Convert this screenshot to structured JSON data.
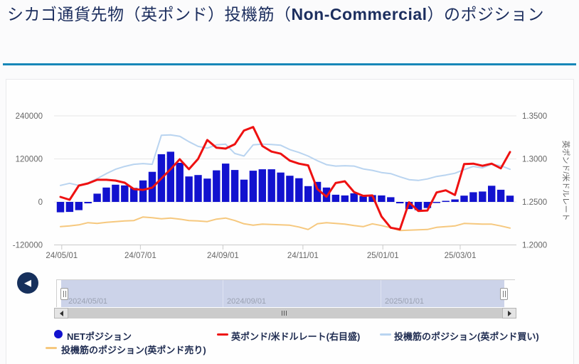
{
  "title": {
    "pre": "シカゴ通貨先物（英ポンド）投機筋（",
    "highlight": "Non-Commercial",
    "post": "）のポジション"
  },
  "back_button": {
    "icon": "◀"
  },
  "navigator": {
    "labels": [
      "2024/05/01",
      "2024/09/01",
      "2025/01/01"
    ]
  },
  "colors": {
    "bar": "#1212cf",
    "rate_line": "#ee1111",
    "long_line": "#b9d4f0",
    "short_line": "#f6c87e",
    "grid": "#e7e7e7",
    "axis_label": "#666666",
    "accent_rule": "#1787b8",
    "navy": "#16305c"
  },
  "chart_data": {
    "type": "combo",
    "title": "シカゴ通貨先物（英ポンド）投機筋（Non-Commercial）のポジション",
    "ylabel_right": "英ポンド/米ドルレート",
    "y_left_ticks": [
      "240000",
      "120000",
      "0",
      "-120000"
    ],
    "y_right_ticks": [
      "1.3500",
      "1.3000",
      "1.2500",
      "1.2000"
    ],
    "ylim_left": [
      -180000,
      300000
    ],
    "ylim_right": [
      1.175,
      1.375
    ],
    "x_ticks": [
      "24/05/01",
      "24/07/01",
      "24/09/01",
      "24/11/01",
      "25/01/01",
      "25/03/01"
    ],
    "grid": true,
    "legend_position": "bottom",
    "categories": [
      "2024/04/30",
      "2024/05/07",
      "2024/05/14",
      "2024/05/21",
      "2024/05/28",
      "2024/06/04",
      "2024/06/11",
      "2024/06/18",
      "2024/06/25",
      "2024/07/02",
      "2024/07/09",
      "2024/07/16",
      "2024/07/23",
      "2024/07/30",
      "2024/08/06",
      "2024/08/13",
      "2024/08/20",
      "2024/08/27",
      "2024/09/03",
      "2024/09/10",
      "2024/09/17",
      "2024/09/24",
      "2024/10/01",
      "2024/10/08",
      "2024/10/15",
      "2024/10/22",
      "2024/10/29",
      "2024/11/05",
      "2024/11/12",
      "2024/11/19",
      "2024/11/26",
      "2024/12/03",
      "2024/12/10",
      "2024/12/17",
      "2024/12/24",
      "2024/12/31",
      "2025/01/07",
      "2025/01/14",
      "2025/01/21",
      "2025/01/28",
      "2025/02/04",
      "2025/02/11",
      "2025/02/18",
      "2025/02/25",
      "2025/03/04",
      "2025/03/11",
      "2025/03/18",
      "2025/03/25",
      "2025/04/01",
      "2025/04/08"
    ],
    "series": [
      {
        "name": "NETポジション",
        "type": "bar",
        "axis": "left",
        "values": [
          -29000,
          -28000,
          -23000,
          -4000,
          23000,
          40000,
          48000,
          46000,
          39000,
          60000,
          84000,
          133000,
          140000,
          109000,
          71000,
          75000,
          65000,
          88000,
          107000,
          89000,
          62000,
          87000,
          91000,
          91000,
          82000,
          73000,
          66000,
          44000,
          56000,
          40000,
          20000,
          18000,
          24000,
          16000,
          19000,
          18000,
          13000,
          -4000,
          -20000,
          -23000,
          -17000,
          -3000,
          2000,
          7000,
          17500,
          27000,
          29000,
          45000,
          34000,
          17500
        ]
      },
      {
        "name": "英ポンド/米ドルレート(右目盛)",
        "type": "line",
        "axis": "right",
        "values": [
          1.2558,
          1.2525,
          1.269,
          1.2715,
          1.2757,
          1.2757,
          1.2748,
          1.2723,
          1.2649,
          1.264,
          1.2665,
          1.2773,
          1.288,
          1.2996,
          1.288,
          1.3,
          1.322,
          1.313,
          1.312,
          1.317,
          1.333,
          1.337,
          1.315,
          1.3085,
          1.306,
          1.298,
          1.2945,
          1.2925,
          1.265,
          1.256,
          1.272,
          1.274,
          1.2615,
          1.257,
          1.2575,
          1.233,
          1.22,
          1.218,
          1.2495,
          1.2395,
          1.24,
          1.261,
          1.2635,
          1.258,
          1.294,
          1.2945,
          1.292,
          1.2945,
          1.289,
          1.308
        ]
      },
      {
        "name": "投機筋のポジション(英ポンド買い)",
        "type": "line",
        "axis": "left",
        "values": [
          46000,
          52000,
          46000,
          53000,
          65000,
          79000,
          91000,
          99000,
          105000,
          107000,
          105000,
          186000,
          187000,
          183000,
          168000,
          155000,
          150000,
          159000,
          161000,
          135000,
          128000,
          159000,
          161000,
          160000,
          158000,
          146000,
          138000,
          128000,
          115000,
          104000,
          100000,
          101000,
          100000,
          92000,
          88000,
          82000,
          79000,
          70000,
          62000,
          60000,
          64000,
          71000,
          75000,
          80000,
          90000,
          99000,
          95000,
          105000,
          101000,
          91000
        ]
      },
      {
        "name": "投機筋のポジション(英ポンド売り)",
        "type": "line",
        "axis": "left",
        "values": [
          -69000,
          -67000,
          -64000,
          -58000,
          -60000,
          -57000,
          -55000,
          -53000,
          -52000,
          -42000,
          -44000,
          -47000,
          -45000,
          -48000,
          -52000,
          -53000,
          -55000,
          -48000,
          -45000,
          -52000,
          -61000,
          -65000,
          -62000,
          -63000,
          -64000,
          -65000,
          -70000,
          -77000,
          -61000,
          -58000,
          -60000,
          -62000,
          -66000,
          -69000,
          -61000,
          -66000,
          -72000,
          -80000,
          -79000,
          -78000,
          -77000,
          -71000,
          -69000,
          -67000,
          -60000,
          -61000,
          -62000,
          -62000,
          -67000,
          -73000
        ]
      }
    ]
  }
}
